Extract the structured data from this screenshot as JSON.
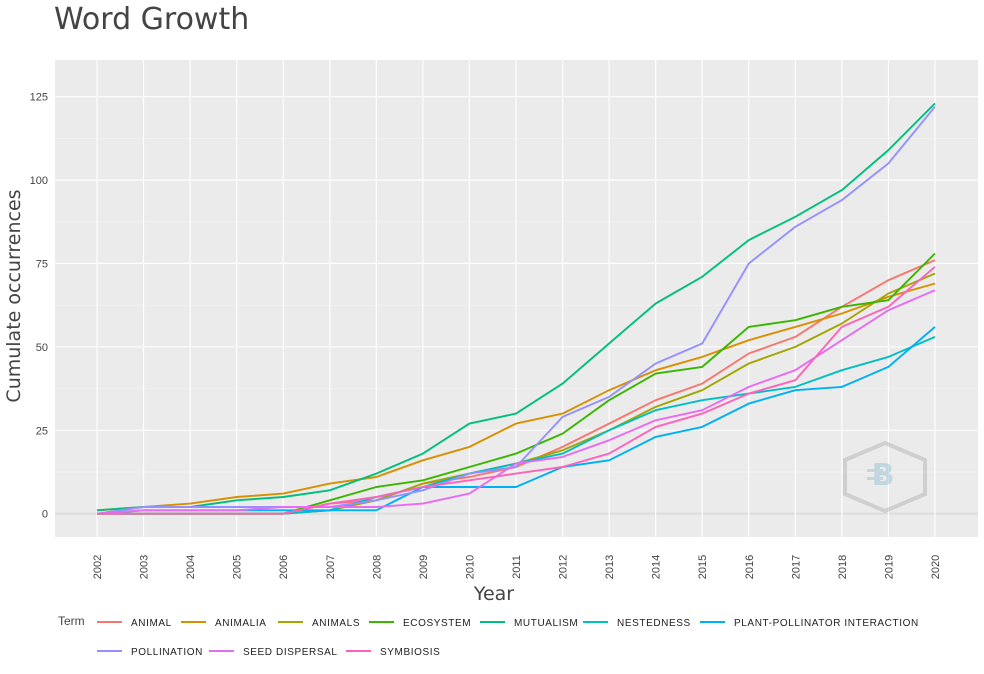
{
  "chart_data": {
    "type": "line",
    "title": "Word Growth",
    "xlabel": "Year",
    "ylabel": "Cumulate occurrences",
    "x": [
      "2002",
      "2003",
      "2004",
      "2005",
      "2006",
      "2007",
      "2008",
      "2009",
      "2010",
      "2011",
      "2012",
      "2013",
      "2014",
      "2015",
      "2016",
      "2017",
      "2018",
      "2019",
      "2020"
    ],
    "yticks": [
      0,
      25,
      50,
      75,
      100,
      125
    ],
    "ylim": [
      -7,
      136
    ],
    "grid": true,
    "legend": {
      "title": "Term",
      "position": "bottom"
    },
    "series": [
      {
        "name": "ANIMAL",
        "color": "#F8766D",
        "values": [
          0,
          0,
          0,
          0,
          0,
          3,
          4,
          9,
          11,
          14,
          20,
          27,
          34,
          39,
          48,
          53,
          62,
          70,
          76
        ]
      },
      {
        "name": "ANIMALIA",
        "color": "#D89000",
        "values": [
          1,
          2,
          3,
          5,
          6,
          9,
          11,
          16,
          20,
          27,
          30,
          37,
          43,
          47,
          52,
          56,
          60,
          65,
          69
        ]
      },
      {
        "name": "ANIMALS",
        "color": "#A3A500",
        "values": [
          0,
          0,
          0,
          0,
          0,
          1,
          4,
          9,
          12,
          15,
          19,
          25,
          32,
          37,
          45,
          50,
          57,
          66,
          72
        ]
      },
      {
        "name": "ECOSYSTEM",
        "color": "#39B600",
        "values": [
          0,
          0,
          0,
          0,
          0,
          4,
          8,
          10,
          14,
          18,
          24,
          34,
          42,
          44,
          56,
          58,
          62,
          64,
          78
        ]
      },
      {
        "name": "MUTUALISM",
        "color": "#00BF7D",
        "values": [
          1,
          2,
          2,
          4,
          5,
          7,
          12,
          18,
          27,
          30,
          39,
          51,
          63,
          71,
          82,
          89,
          97,
          109,
          123
        ]
      },
      {
        "name": "NESTEDNESS",
        "color": "#00BFC4",
        "values": [
          0,
          0,
          0,
          0,
          0,
          1,
          5,
          8,
          12,
          15,
          18,
          25,
          31,
          34,
          36,
          38,
          43,
          47,
          53
        ]
      },
      {
        "name": "PLANT-POLLINATOR INTERACTION",
        "color": "#00B0F6",
        "values": [
          0,
          1,
          1,
          1,
          1,
          1,
          1,
          8,
          8,
          8,
          14,
          16,
          23,
          26,
          33,
          37,
          38,
          44,
          56
        ]
      },
      {
        "name": "POLLINATION",
        "color": "#9590FF",
        "values": [
          0,
          2,
          2,
          2,
          2,
          2,
          4,
          7,
          12,
          14,
          29,
          35,
          45,
          51,
          75,
          86,
          94,
          105,
          122
        ]
      },
      {
        "name": "SEED DISPERSAL",
        "color": "#E76BF3",
        "values": [
          0,
          1,
          1,
          1,
          2,
          2,
          2,
          3,
          6,
          15,
          17,
          22,
          28,
          31,
          38,
          43,
          52,
          61,
          67
        ]
      },
      {
        "name": "SYMBIOSIS",
        "color": "#FF62BC",
        "values": [
          0,
          0,
          0,
          0,
          0,
          3,
          5,
          8,
          10,
          12,
          14,
          18,
          26,
          30,
          36,
          40,
          56,
          62,
          74
        ]
      }
    ]
  }
}
